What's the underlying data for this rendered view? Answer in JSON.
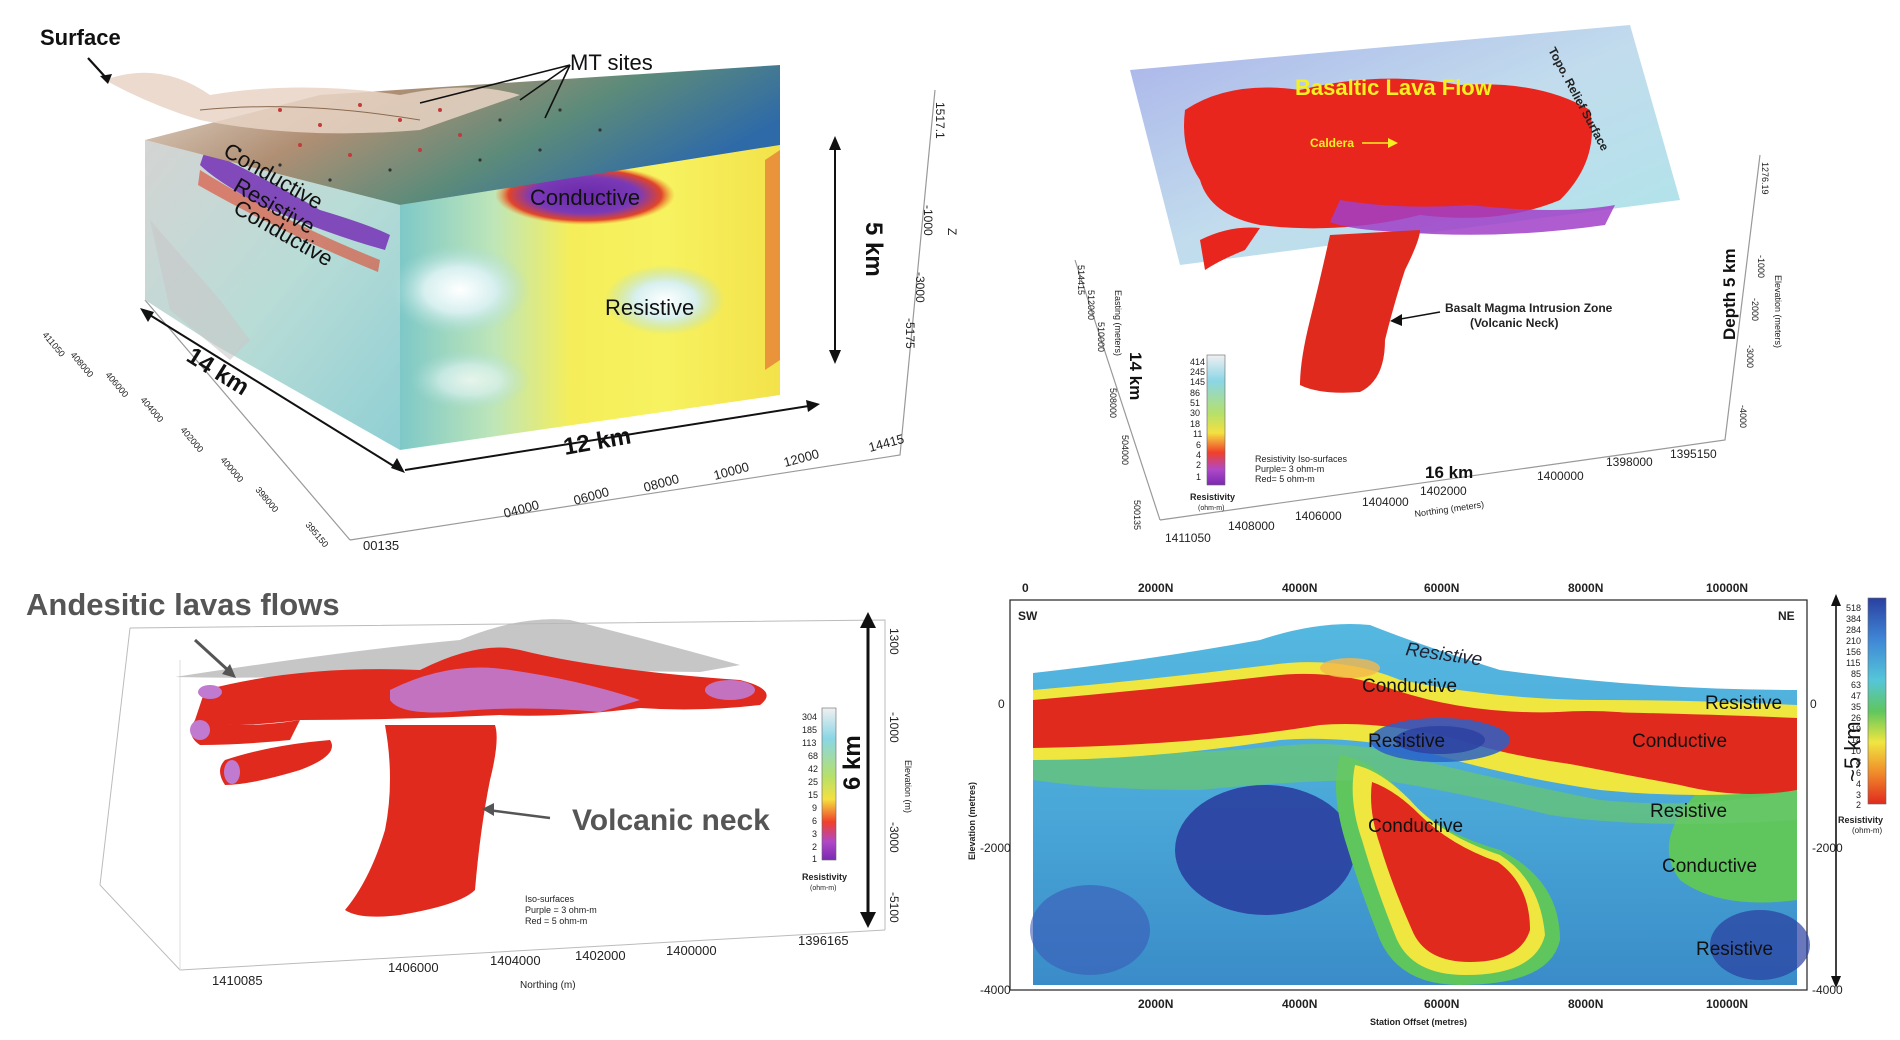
{
  "panel_a": {
    "surface": "Surface",
    "mt_sites": "MT sites",
    "conductive_left": "Conductive",
    "resistive_left": "Resistive",
    "conductive_left2": "Conductive",
    "conductive_top": "Conductive",
    "resistive_center": "Resistive",
    "dim_depth": "5 km",
    "dim_width": "14 km",
    "dim_length": "12 km",
    "z_label": "Z",
    "z_ticks": [
      "1517.1",
      "-1000",
      "-3000",
      "-5175"
    ],
    "x_ticks": [
      "00135",
      "04000",
      "06000",
      "08000",
      "10000",
      "12000",
      "14415"
    ],
    "y_ticks": [
      "411050",
      "408000",
      "406000",
      "404000",
      "402000",
      "400000",
      "398000",
      "395150"
    ]
  },
  "panel_b": {
    "title": "Basaltic Lava Flow",
    "caldera": "Caldera",
    "topo": "Topo. Relief Surface",
    "intrusion_1": "Basalt Magma Intrusion Zone",
    "intrusion_2": "(Volcanic Neck)",
    "depth": "Depth 5 km",
    "dim_14": "14 km",
    "dim_16": "16 km",
    "elev_label": "Elevation (meters)",
    "elev_ticks": [
      "1276.19",
      "-1000",
      "-2000",
      "-3000",
      "-4000"
    ],
    "north_label": "Northing (meters)",
    "north_ticks": [
      "1411050",
      "1408000",
      "1406000",
      "1404000",
      "1402000",
      "1400000",
      "1398000",
      "1395150"
    ],
    "east_label": "Easting (meters)",
    "east_ticks": [
      "514415",
      "512000",
      "510000",
      "508000",
      "504000",
      "500135"
    ],
    "legend_values": [
      "414",
      "245",
      "145",
      "86",
      "51",
      "30",
      "18",
      "11",
      "6",
      "4",
      "2",
      "1"
    ],
    "legend_title": "Resistivity",
    "legend_unit": "(ohm-m)",
    "iso_1": "Resistivity Iso-surfaces",
    "iso_2": "Purple= 3 ohm-m",
    "iso_3": "Red= 5 ohm-m"
  },
  "panel_c": {
    "andesitic": "Andesitic lavas flows",
    "volcanic_neck": "Volcanic neck",
    "dim_6km": "6 km",
    "elev_label": "Elevation (m)",
    "elev_ticks": [
      "1300",
      "-1000",
      "-3000",
      "-5100"
    ],
    "north_label": "Northing (m)",
    "north_ticks": [
      "1410085",
      "1406000",
      "1404000",
      "1402000",
      "1400000",
      "1396165"
    ],
    "legend_values": [
      "304",
      "185",
      "113",
      "68",
      "42",
      "25",
      "15",
      "9",
      "6",
      "3",
      "2",
      "1"
    ],
    "legend_title": "Resistivity",
    "legend_unit": "(ohm-m)",
    "iso_1": "Iso-surfaces",
    "iso_2": "Purple = 3 ohm-m",
    "iso_3": "Red = 5 ohm-m"
  },
  "panel_d": {
    "top_ticks": [
      "0",
      "2000N",
      "4000N",
      "6000N",
      "8000N",
      "10000N"
    ],
    "bottom_ticks": [
      "2000N",
      "4000N",
      "6000N",
      "8000N",
      "10000N"
    ],
    "sw": "SW",
    "ne": "NE",
    "left_ticks": [
      "0",
      "-2000",
      "-4000"
    ],
    "right_ticks": [
      "0",
      "-2000",
      "-4000"
    ],
    "ylabel": "Elevation (metres)",
    "xlabel": "Station Offset (metres)",
    "dim_5km": "~5 km",
    "legend_values": [
      "518",
      "384",
      "284",
      "210",
      "156",
      "115",
      "85",
      "63",
      "47",
      "35",
      "26",
      "19",
      "14",
      "10",
      "8",
      "6",
      "4",
      "3",
      "2"
    ],
    "legend_title": "Resistivity",
    "legend_unit": "(ohm-m)",
    "labels": {
      "resistive_top": "Resistive",
      "conductive_top": "Conductive",
      "resistive_right_top": "Resistive",
      "resistive_mid": "Resistive",
      "conductive_right": "Conductive",
      "conductive_center": "Conductive",
      "resistive_right_mid": "Resistive",
      "conductive_right_low": "Conductive",
      "resistive_bottom": "Resistive"
    }
  }
}
